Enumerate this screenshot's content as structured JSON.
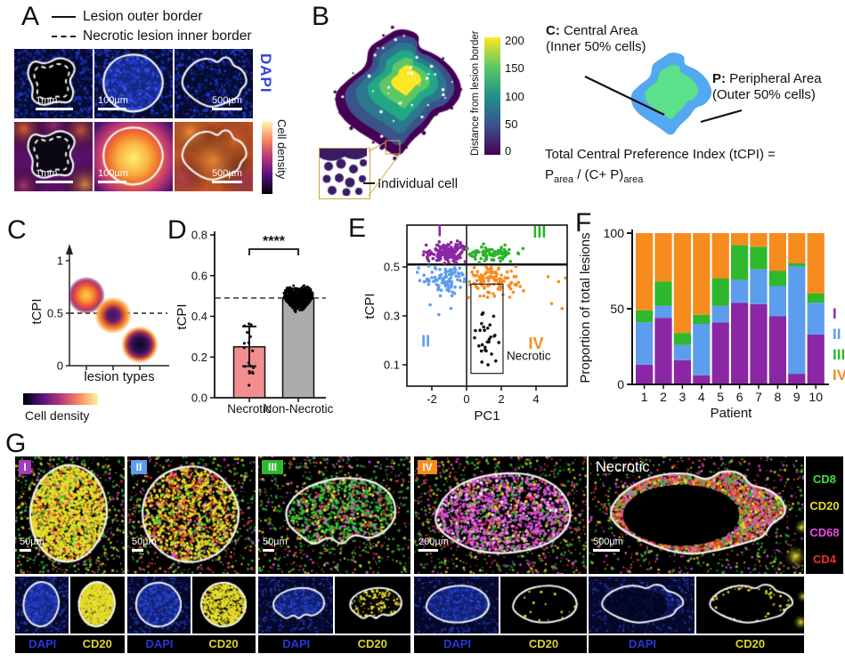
{
  "panel_labels": {
    "A": "A",
    "B": "B",
    "C": "C",
    "D": "D",
    "E": "E",
    "F": "F",
    "G": "G"
  },
  "panels": {
    "A": {
      "legend": [
        {
          "label": "Lesion outer border"
        },
        {
          "label": "Necrotic lesion inner border"
        }
      ],
      "dapi_label": "DAPI",
      "density_label": "Cell density",
      "tiles": [
        {
          "scale": "1mm"
        },
        {
          "scale": "100µm"
        },
        {
          "scale": "500µm"
        },
        {
          "scale": "1mm"
        },
        {
          "scale": "100µm"
        },
        {
          "scale": "500µm"
        }
      ]
    },
    "B": {
      "colorbar_title": "Distance from lesion border",
      "colorbar_ticks": [
        "200",
        "150",
        "100",
        "50",
        "0"
      ],
      "inset_label": "Individual cell",
      "central_bold": "C:",
      "central_rest": " Central Area",
      "central_sub": "(Inner 50% cells)",
      "peripheral_bold": "P:",
      "peripheral_rest": " Peripheral Area",
      "peripheral_sub": "(Outer 50% cells)",
      "formula_line1": "Total Central Preference Index (tCPI) =",
      "formula": {
        "p": "P",
        "p_sub": "area",
        "mid": " / (C+ P)",
        "end_sub": "area"
      }
    },
    "G": {
      "markers": [
        {
          "name": "CD8",
          "color": "#3DE03D"
        },
        {
          "name": "CD20",
          "color": "#E6DC2E"
        },
        {
          "name": "CD68",
          "color": "#E84FE0"
        },
        {
          "name": "CD4",
          "color": "#F02E2E"
        }
      ],
      "tiles": [
        {
          "badge": "I",
          "badge_color": "#A33BC2",
          "scale": "50µm"
        },
        {
          "badge": "II",
          "badge_color": "#5C9DEE",
          "scale": "50µm"
        },
        {
          "badge": "III",
          "badge_color": "#2EB82E",
          "scale": "50µm"
        },
        {
          "badge": "IV",
          "badge_color": "#F78C1E",
          "scale": "200µm"
        },
        {
          "badge": "Necrotic",
          "badge_color": "",
          "scale": "500µm"
        }
      ],
      "channel_labels": {
        "dapi": "DAPI",
        "cd20": "CD20"
      }
    }
  },
  "chart_data": [
    {
      "type": "scatter",
      "panel": "C",
      "ylabel": "tCPI",
      "xlabel": "lesion types",
      "yticks": [
        0,
        0.5,
        1
      ],
      "dashed_y": 0.5,
      "colorbar_label": "Cell density",
      "points": [
        {
          "x": 1,
          "y": 0.67,
          "style": "bright-center"
        },
        {
          "x": 2,
          "y": 0.48,
          "style": "dark-center"
        },
        {
          "x": 3,
          "y": 0.2,
          "style": "darkest-center"
        }
      ]
    },
    {
      "type": "bar",
      "panel": "D",
      "categories": [
        "Necrotic",
        "Non-Necrotic"
      ],
      "values": [
        0.25,
        0.49
      ],
      "bar_colors": [
        "#F28E90",
        "#ABABAB"
      ],
      "ylabel": "tCPI",
      "ylim": [
        0,
        0.8
      ],
      "yticks": [
        0,
        0.2,
        0.4,
        0.6,
        0.8
      ],
      "dashed_y": 0.49,
      "significance": "****",
      "error_bar": {
        "category": "Necrotic",
        "low": 0.155,
        "high": 0.35
      },
      "jitter": [
        {
          "category": "Necrotic",
          "count": 18,
          "min": 0.06,
          "max": 0.41
        },
        {
          "category": "Non-Necrotic",
          "count": 650,
          "min": 0.28,
          "max": 0.63,
          "mode": 0.5
        }
      ]
    },
    {
      "type": "scatter",
      "panel": "E",
      "xlabel": "PC1",
      "ylabel": "tCPI",
      "xticks": [
        -2,
        0,
        2,
        4
      ],
      "yticks": [
        0.1,
        0.3,
        0.5
      ],
      "xlim": [
        -3.3,
        6.1
      ],
      "ylim": [
        0.05,
        0.66
      ],
      "hline_y": 0.51,
      "vline_x": 0,
      "clusters": [
        {
          "name": "I",
          "color": "#8B27A5",
          "count": 170,
          "cx": -1.1,
          "cy": 0.555,
          "sx": 0.75,
          "sy": 0.028,
          "label_x": -1.55,
          "label_y": 0.625
        },
        {
          "name": "III",
          "color": "#28B428",
          "count": 80,
          "cx": 1.3,
          "cy": 0.55,
          "sx": 1.1,
          "sy": 0.025,
          "label_x": 4.2,
          "label_y": 0.62
        },
        {
          "name": "II",
          "color": "#5C9DEE",
          "count": 95,
          "cx": -1.2,
          "cy": 0.455,
          "sx": 0.9,
          "sy": 0.04,
          "label_x": -2.35,
          "label_y": 0.175,
          "extra_points": [
            [
              -1.6,
              0.305
            ],
            [
              -0.9,
              0.33
            ],
            [
              -2.1,
              0.345
            ]
          ]
        },
        {
          "name": "IV",
          "color": "#F78C1E",
          "count": 110,
          "cx": 1.2,
          "cy": 0.45,
          "sx": 1.2,
          "sy": 0.045,
          "label_x": 4.0,
          "label_y": 0.165,
          "extra_points": [
            [
              4.7,
              0.46
            ],
            [
              5.3,
              0.44
            ],
            [
              5.7,
              0.455
            ],
            [
              4.9,
              0.35
            ],
            [
              5.5,
              0.33
            ]
          ]
        },
        {
          "name": "Necrotic",
          "color": "#111111",
          "count": 28,
          "cx": 1.1,
          "cy": 0.23,
          "sx": 0.45,
          "sy": 0.09
        }
      ],
      "necrotic_box": {
        "x0": 0.25,
        "x1": 2.1,
        "y0": 0.065,
        "y1": 0.43
      },
      "necrotic_label": "Necrotic"
    },
    {
      "type": "stacked-bar",
      "panel": "F",
      "xlabel": "Patient",
      "ylabel": "Proportion of total lesions",
      "ylim": [
        0,
        100
      ],
      "yticks": [
        0,
        50,
        100
      ],
      "categories": [
        "1",
        "2",
        "3",
        "4",
        "5",
        "6",
        "7",
        "8",
        "9",
        "10"
      ],
      "series": [
        {
          "name": "I",
          "color": "#8B27A5",
          "values": [
            13,
            44,
            16,
            6,
            41,
            54,
            53,
            45,
            7,
            33
          ]
        },
        {
          "name": "II",
          "color": "#5C9DEE",
          "values": [
            28,
            8,
            10,
            34,
            11,
            15,
            23,
            20,
            71,
            21
          ]
        },
        {
          "name": "III",
          "color": "#2EB82E",
          "values": [
            8,
            16,
            8,
            6,
            18,
            23,
            15,
            10,
            2,
            6
          ]
        },
        {
          "name": "IV",
          "color": "#F78C1E",
          "values": [
            51,
            32,
            66,
            54,
            30,
            8,
            9,
            25,
            20,
            40
          ]
        }
      ],
      "legend": [
        "I",
        "II",
        "III",
        "IV"
      ]
    }
  ]
}
